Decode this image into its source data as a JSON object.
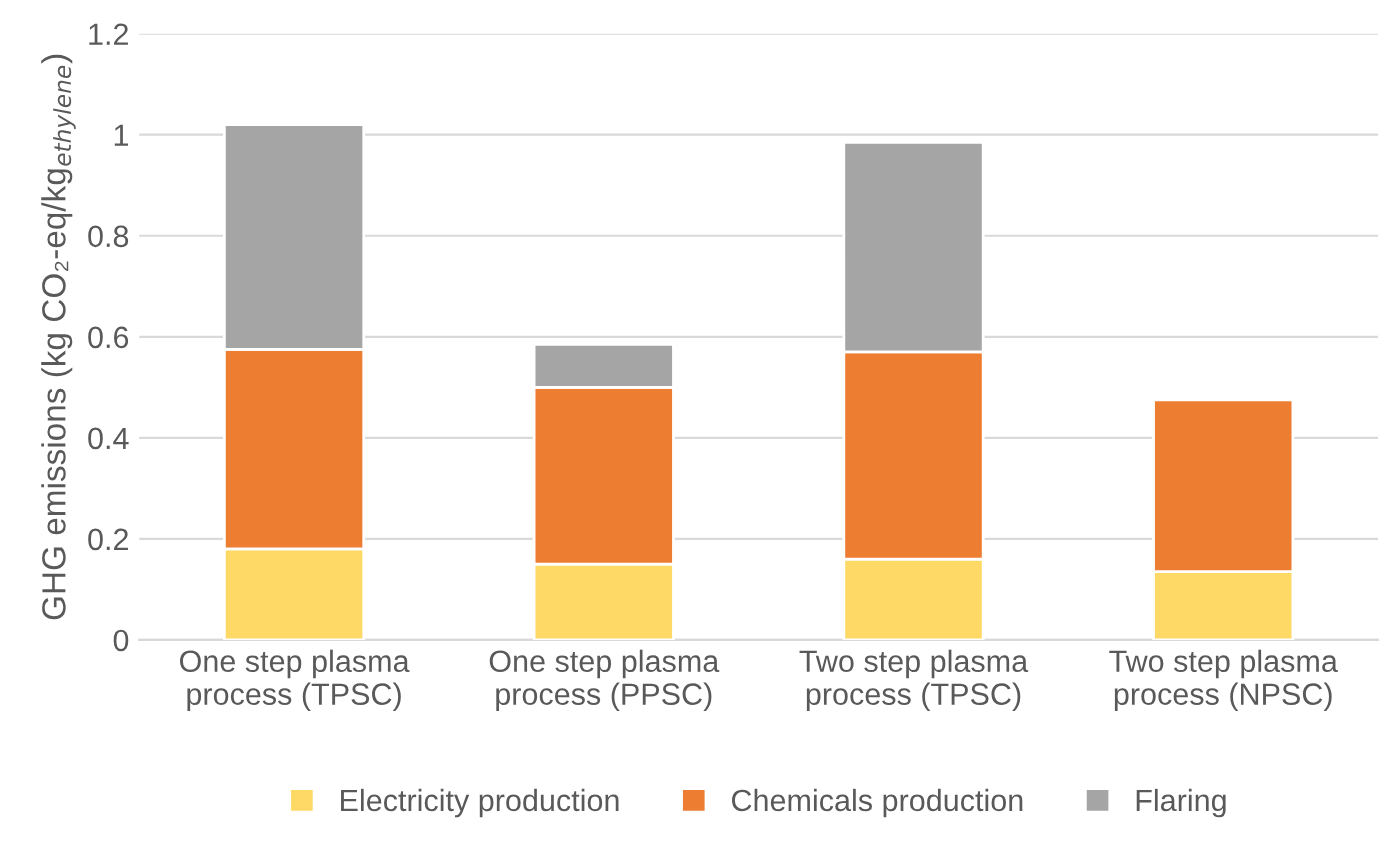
{
  "chart_data": {
    "type": "bar",
    "stacked": true,
    "ylabel": "GHG emissions (kg CO₂-eq/kg$_{ethylene}$)",
    "categories": [
      "One step plasma\nprocess (TPSC)",
      "One step plasma\nprocess (PPSC)",
      "Two step plasma\nprocess (TPSC)",
      "Two step plasma\nprocess (NPSC)"
    ],
    "series": [
      {
        "name": "Electricity production",
        "color": "#ffd966",
        "values": [
          0.18,
          0.15,
          0.16,
          0.135
        ]
      },
      {
        "name": "Chemicals production",
        "color": "#ed7d31",
        "values": [
          0.395,
          0.35,
          0.41,
          0.34
        ]
      },
      {
        "name": "Flaring",
        "color": "#a5a5a5",
        "values": [
          0.445,
          0.085,
          0.415,
          null
        ]
      }
    ],
    "ylim": [
      0,
      1.2
    ],
    "yticks": [
      0,
      {
        "value": 0.2,
        "label": "0.2"
      },
      {
        "value": 0.4,
        "label": "0.4"
      },
      {
        "value": 0.6,
        "label": "0.6"
      },
      {
        "value": 0.8,
        "label": "0.8"
      },
      1,
      {
        "value": 1.2,
        "label": "1.2"
      }
    ],
    "grid": "y",
    "legend": "bottom"
  }
}
